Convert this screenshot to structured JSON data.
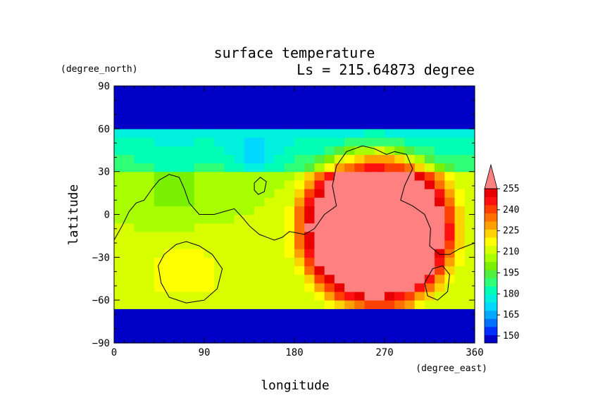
{
  "chart_data": {
    "type": "heatmap",
    "title": "surface temperature",
    "subtitle": "Ls = 215.64873 degree",
    "xlabel": "longitude",
    "ylabel": "latitude",
    "x_unit": "(degree_east)",
    "y_unit": "(degree_north)",
    "xlim": [
      0,
      360
    ],
    "ylim": [
      -90,
      90
    ],
    "x_ticks": [
      0,
      90,
      180,
      270,
      360
    ],
    "y_ticks": [
      90,
      60,
      30,
      0,
      -30,
      -60,
      -90
    ],
    "colorbar": {
      "levels": [
        145,
        150,
        155,
        160,
        165,
        170,
        175,
        180,
        185,
        190,
        195,
        200,
        205,
        210,
        215,
        220,
        225,
        230,
        235,
        240,
        245,
        250,
        255,
        260
      ],
      "tick_labels": [
        "150",
        "165",
        "180",
        "195",
        "210",
        "225",
        "240",
        "255"
      ],
      "colors": [
        "#0000c8",
        "#0030ff",
        "#0070ff",
        "#00a8ff",
        "#00d8ff",
        "#00f0e0",
        "#00ffb4",
        "#30ff78",
        "#50f040",
        "#78f000",
        "#a8ff00",
        "#d8ff00",
        "#ffff00",
        "#ffd200",
        "#ffa000",
        "#ff7000",
        "#ff4000",
        "#ff1010",
        "#e80000",
        "#ff8080"
      ],
      "extend": "max"
    },
    "grid_sampling": {
      "dlon": 10,
      "dlat": 6
    },
    "notable_features": [
      {
        "region": "polar caps (lat > 62 and lat < -66)",
        "value_K": 147
      },
      {
        "region": "warm region centered lon 262 lat -10",
        "value_K": 260
      },
      {
        "region": "northern mid-latitude band lat 30-60",
        "value_K": 185
      }
    ],
    "grid_on": false,
    "legend": "right colorbar"
  }
}
